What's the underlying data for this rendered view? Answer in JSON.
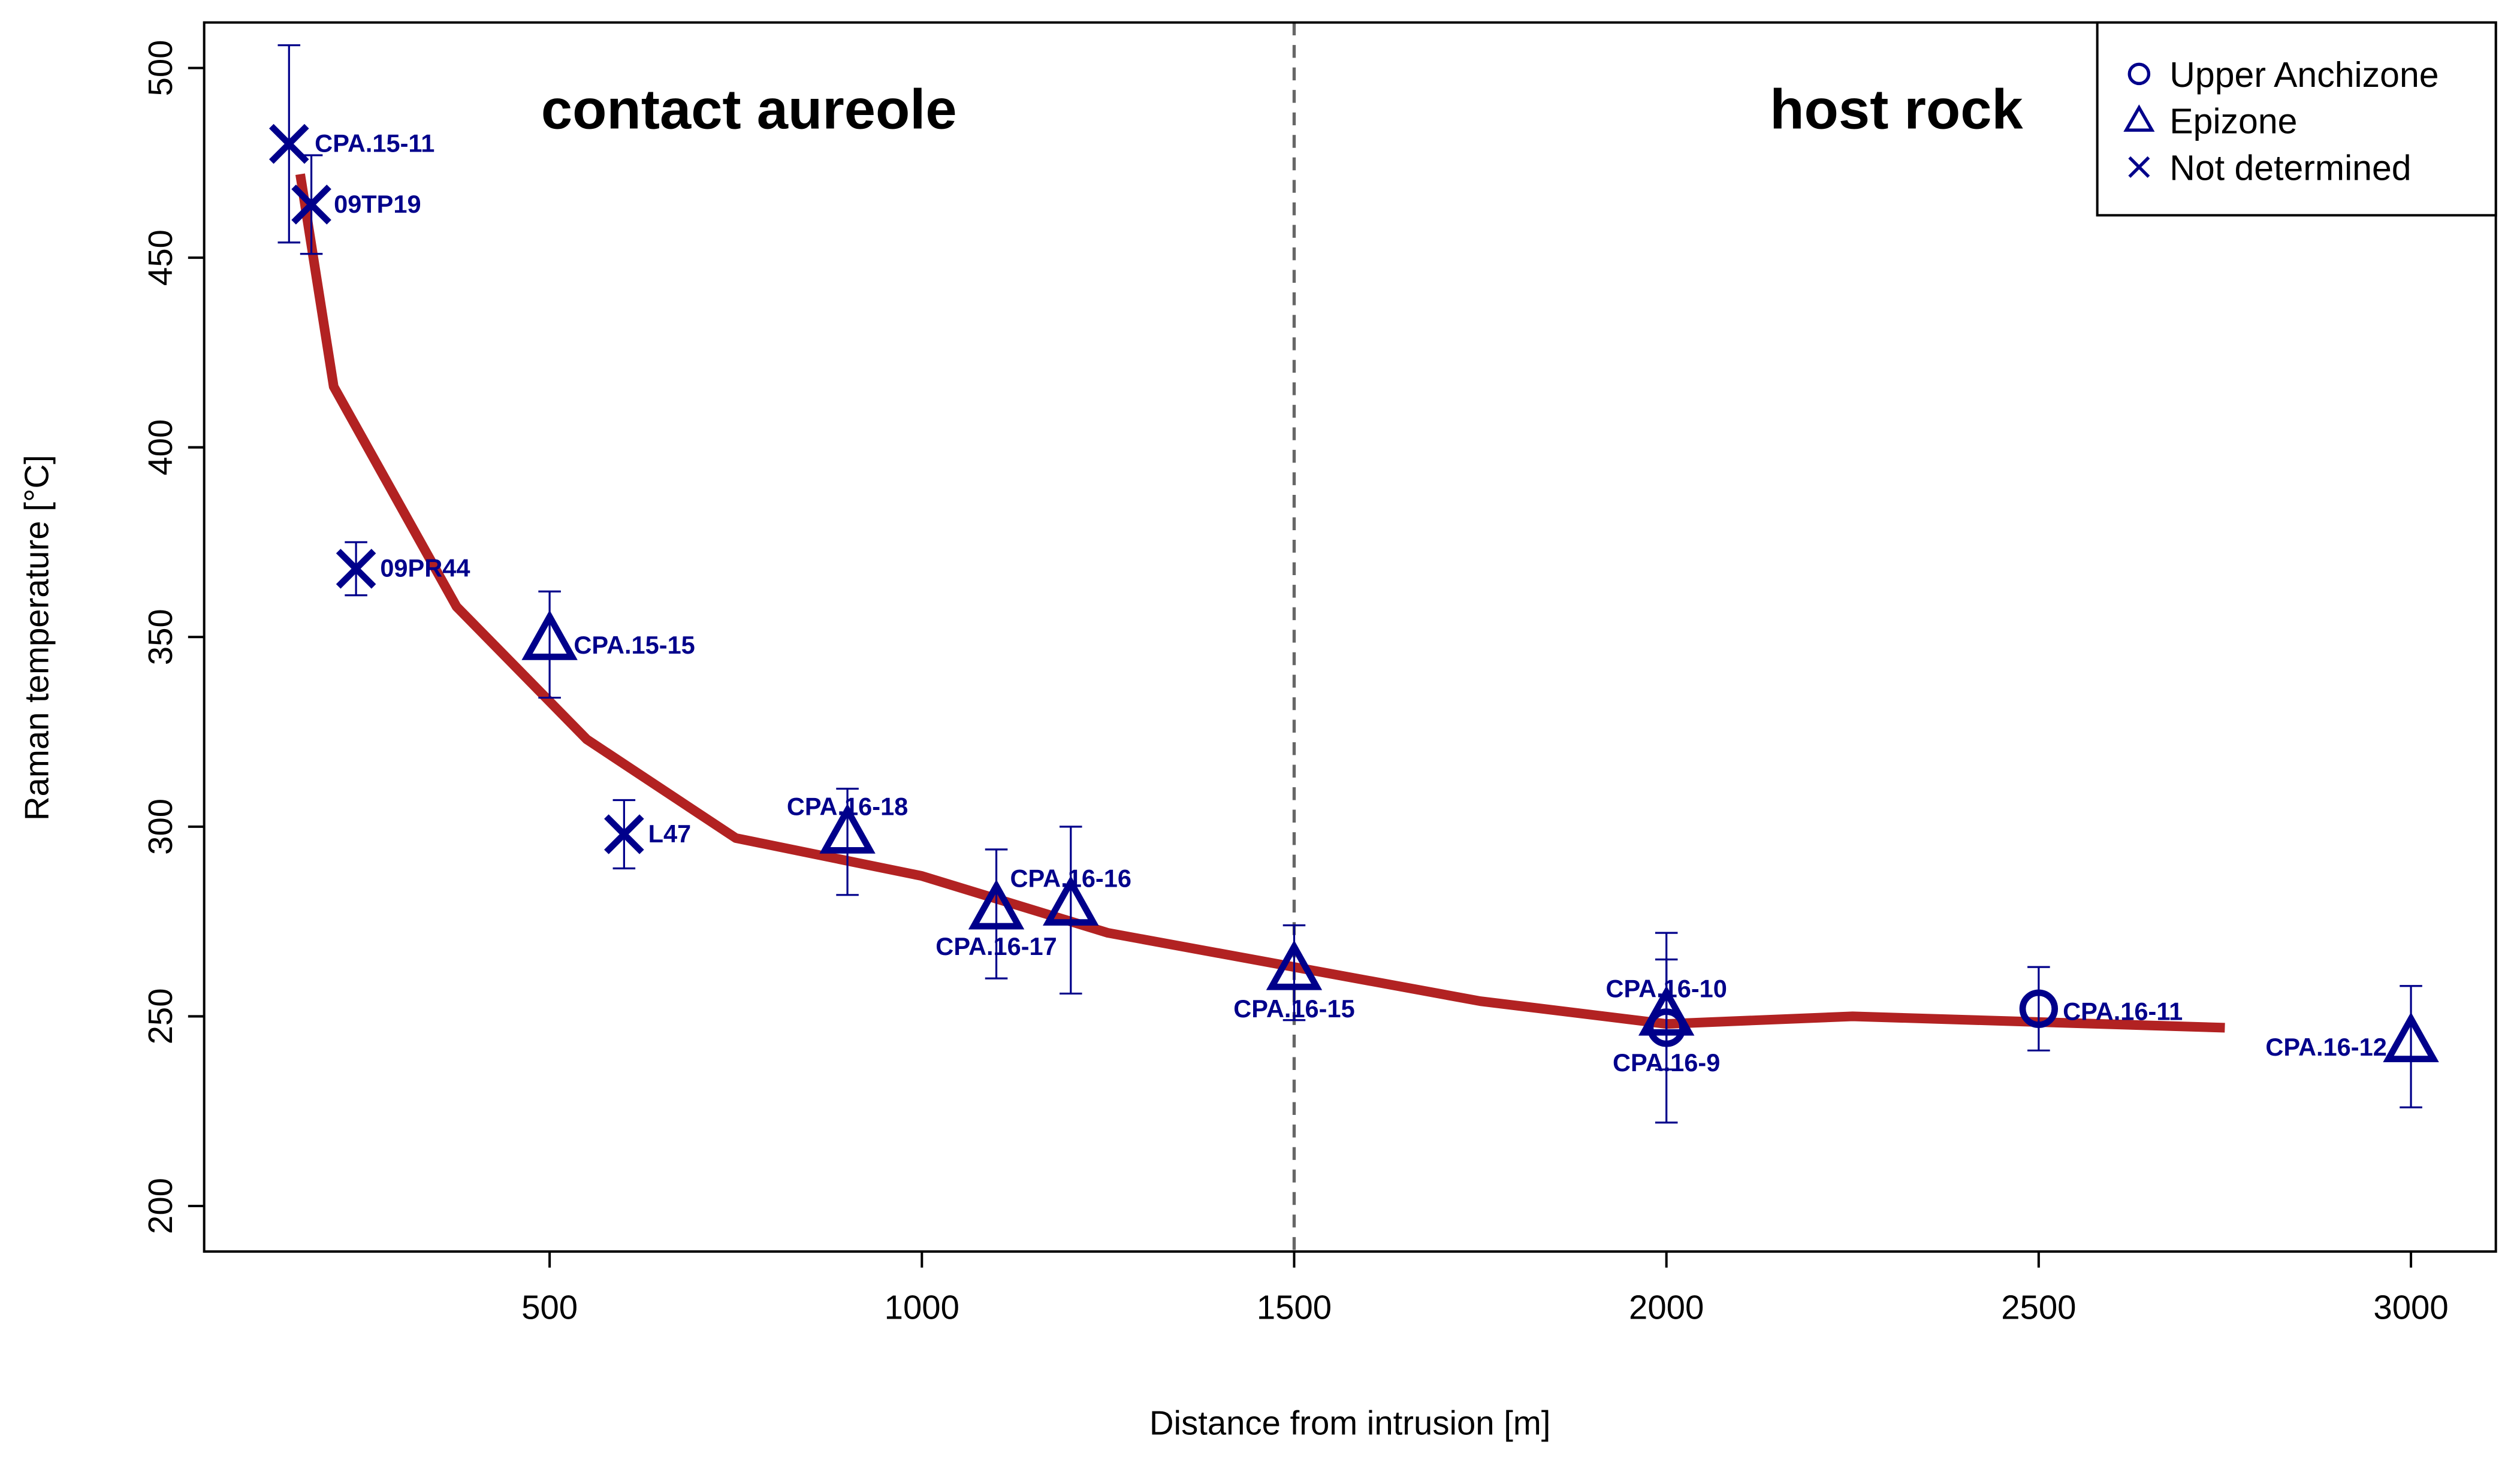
{
  "chart_data": {
    "type": "scatter",
    "x_label": "Distance from intrusion [m]",
    "y_label": "Raman temperature [°C]",
    "annotations": [
      "contact aureole",
      "host rock"
    ],
    "boundary_x": 1500,
    "xlim": [
      36,
      3114
    ],
    "ylim": [
      188,
      512
    ],
    "xticks": [
      500,
      1000,
      1500,
      2000,
      2500,
      3000
    ],
    "yticks": [
      200,
      250,
      300,
      350,
      400,
      450,
      500
    ],
    "legend_position": "top-right",
    "series": [
      {
        "name": "Upper Anchizone",
        "marker": "circle",
        "color": "#00008b",
        "x": [
          2000,
          2500
        ],
        "values": [
          247,
          252
        ],
        "ylow": [
          222,
          241
        ],
        "yhigh": [
          272,
          263
        ],
        "labels": [
          "CPA.16-9",
          "CPA.16-11"
        ]
      },
      {
        "name": "Epizone",
        "marker": "triangle",
        "color": "#00008b",
        "x": [
          500,
          900,
          1100,
          1200,
          1500,
          2000,
          3000
        ],
        "values": [
          349,
          298,
          278,
          279,
          262,
          250,
          243
        ],
        "ylow": [
          334,
          282,
          260,
          256,
          249,
          236,
          226
        ],
        "yhigh": [
          362,
          310,
          294,
          300,
          274,
          265,
          258
        ],
        "labels": [
          "CPA.15-15",
          "CPA.16-18",
          "CPA.16-17",
          "CPA.16-16",
          "CPA.16-15",
          "CPA.16-10",
          "CPA.16-12"
        ]
      },
      {
        "name": "Not determined",
        "marker": "x",
        "color": "#00008b",
        "x": [
          150,
          180,
          240,
          600
        ],
        "values": [
          480,
          464,
          368,
          298
        ],
        "ylow": [
          454,
          451,
          361,
          289
        ],
        "yhigh": [
          506,
          477,
          375,
          307
        ],
        "labels": [
          "CPA.15-11",
          "09TP19",
          "09PR44",
          "L47"
        ]
      }
    ],
    "curve": {
      "color": "#b22222",
      "x": [
        165,
        210,
        375,
        550,
        750,
        1000,
        1250,
        1750,
        2000,
        2250,
        2750
      ],
      "values": [
        472,
        416,
        358,
        323,
        297,
        287,
        272,
        254,
        248,
        250,
        247
      ]
    }
  }
}
